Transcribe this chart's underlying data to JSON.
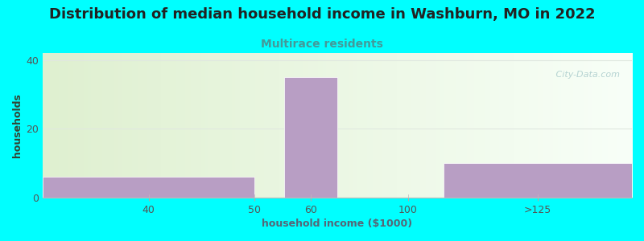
{
  "title": "Distribution of median household income in Washburn, MO in 2022",
  "subtitle": "Multirace residents",
  "xlabel": "household income ($1000)",
  "ylabel": "households",
  "background_color": "#00FFFF",
  "plot_bg_color_left": "#dff0d0",
  "plot_bg_color_right": "#f8fff8",
  "bar_color": "#b89ec4",
  "bar_edge_color": "#ffffff",
  "watermark": " City-Data.com",
  "yticks": [
    0,
    20,
    40
  ],
  "ylim": [
    0,
    42
  ],
  "xlim": [
    0,
    10
  ],
  "bars": [
    {
      "x_left": 0.0,
      "x_right": 3.6,
      "height": 6
    },
    {
      "x_left": 4.1,
      "x_right": 5.0,
      "height": 35
    },
    {
      "x_left": 6.8,
      "x_right": 10.0,
      "height": 10
    }
  ],
  "xtick_positions": [
    1.8,
    3.6,
    4.55,
    6.2,
    8.4
  ],
  "xtick_labels": [
    "40",
    "50",
    "60",
    "100",
    ">125"
  ],
  "title_fontsize": 13,
  "subtitle_fontsize": 10,
  "label_fontsize": 9,
  "tick_fontsize": 9,
  "title_color": "#222222",
  "subtitle_color": "#449999",
  "xlabel_color": "#556677",
  "ylabel_color": "#334433",
  "tick_color": "#555555",
  "watermark_color": "#aacccc",
  "grid_color": "#e0e8e0"
}
